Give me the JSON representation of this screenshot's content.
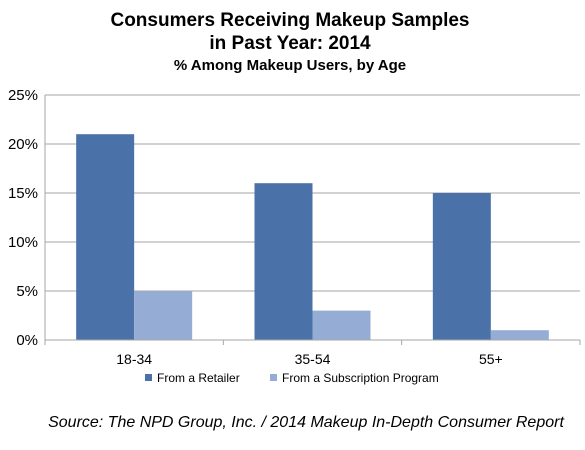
{
  "chart_data": {
    "type": "bar",
    "title_line1": "Consumers Receiving Makeup Samples",
    "title_line2": "in Past Year: 2014",
    "subtitle": "% Among Makeup Users, by Age",
    "categories": [
      "18-34",
      "35-54",
      "55+"
    ],
    "series": [
      {
        "name": "From a Retailer",
        "values": [
          21,
          16,
          15
        ],
        "color": "#4a72a8"
      },
      {
        "name": "From a Subscription Program",
        "values": [
          5,
          3,
          1
        ],
        "color": "#95add4"
      }
    ],
    "ylim": [
      0,
      25
    ],
    "yticks": [
      0,
      5,
      10,
      15,
      20,
      25
    ],
    "ytick_labels": [
      "0%",
      "5%",
      "10%",
      "15%",
      "20%",
      "25%"
    ],
    "grid": true,
    "legend_position": "bottom",
    "source": "Source: The NPD Group, Inc. / 2014 Makeup In-Depth Consumer Report"
  }
}
